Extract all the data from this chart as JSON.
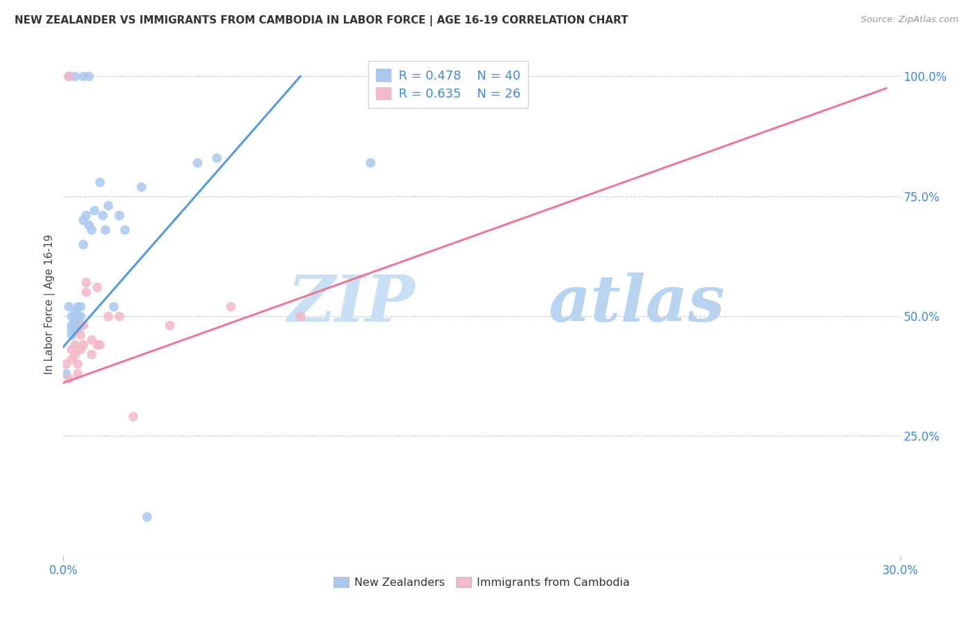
{
  "title": "NEW ZEALANDER VS IMMIGRANTS FROM CAMBODIA IN LABOR FORCE | AGE 16-19 CORRELATION CHART",
  "source": "Source: ZipAtlas.com",
  "ylabel": "In Labor Force | Age 16-19",
  "xmin": 0.0,
  "xmax": 0.3,
  "ymin": 0.0,
  "ymax": 1.05,
  "right_yticks": [
    0.25,
    0.5,
    0.75,
    1.0
  ],
  "right_yticklabels": [
    "25.0%",
    "50.0%",
    "75.0%",
    "100.0%"
  ],
  "watermark_zip": "ZIP",
  "watermark_atlas": "atlas",
  "nz_color": "#aac8ee",
  "cam_color": "#f4b8c8",
  "nz_edge_color": "#88aadd",
  "cam_edge_color": "#e898b0",
  "nz_line_color": "#5599dd",
  "cam_line_color": "#ee7799",
  "nz_r": "0.478",
  "nz_n": "40",
  "cam_r": "0.635",
  "cam_n": "26",
  "legend_label_nz": "New Zealanders",
  "legend_label_cam": "Immigrants from Cambodia",
  "nz_points": [
    [
      0.001,
      0.38
    ],
    [
      0.002,
      0.52
    ],
    [
      0.003,
      0.47
    ],
    [
      0.003,
      0.5
    ],
    [
      0.003,
      0.46
    ],
    [
      0.003,
      0.48
    ],
    [
      0.004,
      0.51
    ],
    [
      0.004,
      0.5
    ],
    [
      0.004,
      0.49
    ],
    [
      0.004,
      0.48
    ],
    [
      0.005,
      0.52
    ],
    [
      0.005,
      0.5
    ],
    [
      0.005,
      0.49
    ],
    [
      0.005,
      0.48
    ],
    [
      0.005,
      0.47
    ],
    [
      0.006,
      0.52
    ],
    [
      0.006,
      0.5
    ],
    [
      0.006,
      0.48
    ],
    [
      0.007,
      0.65
    ],
    [
      0.007,
      0.7
    ],
    [
      0.008,
      0.71
    ],
    [
      0.009,
      0.69
    ],
    [
      0.01,
      0.68
    ],
    [
      0.011,
      0.72
    ],
    [
      0.013,
      0.78
    ],
    [
      0.014,
      0.71
    ],
    [
      0.015,
      0.68
    ],
    [
      0.016,
      0.73
    ],
    [
      0.018,
      0.52
    ],
    [
      0.02,
      0.71
    ],
    [
      0.022,
      0.68
    ],
    [
      0.028,
      0.77
    ],
    [
      0.002,
      1.0
    ],
    [
      0.004,
      1.0
    ],
    [
      0.007,
      1.0
    ],
    [
      0.009,
      1.0
    ],
    [
      0.11,
      0.82
    ],
    [
      0.048,
      0.82
    ],
    [
      0.055,
      0.83
    ],
    [
      0.03,
      0.08
    ]
  ],
  "cam_points": [
    [
      0.001,
      0.4
    ],
    [
      0.002,
      0.37
    ],
    [
      0.003,
      0.43
    ],
    [
      0.003,
      0.41
    ],
    [
      0.004,
      0.44
    ],
    [
      0.004,
      0.42
    ],
    [
      0.005,
      0.4
    ],
    [
      0.005,
      0.38
    ],
    [
      0.006,
      0.46
    ],
    [
      0.006,
      0.43
    ],
    [
      0.007,
      0.48
    ],
    [
      0.007,
      0.44
    ],
    [
      0.008,
      0.57
    ],
    [
      0.008,
      0.55
    ],
    [
      0.01,
      0.45
    ],
    [
      0.01,
      0.42
    ],
    [
      0.012,
      0.56
    ],
    [
      0.012,
      0.44
    ],
    [
      0.013,
      0.44
    ],
    [
      0.016,
      0.5
    ],
    [
      0.02,
      0.5
    ],
    [
      0.025,
      0.29
    ],
    [
      0.06,
      0.52
    ],
    [
      0.085,
      0.5
    ],
    [
      0.002,
      1.0
    ],
    [
      0.038,
      0.48
    ]
  ],
  "nz_trendline_x": [
    0.0,
    0.085
  ],
  "nz_trendline_y": [
    0.435,
    1.0
  ],
  "cam_trendline_x": [
    0.0,
    0.295
  ],
  "cam_trendline_y": [
    0.36,
    0.975
  ]
}
